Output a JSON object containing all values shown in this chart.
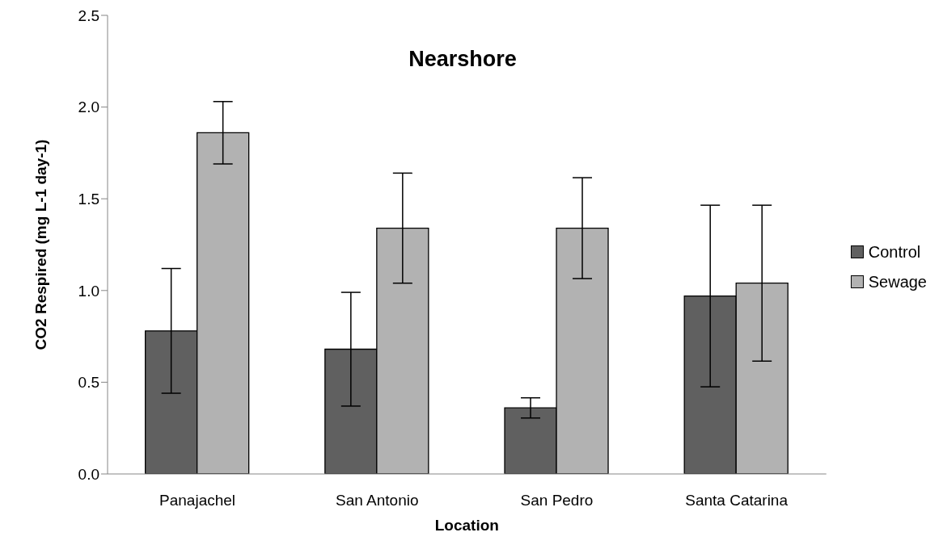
{
  "chart_data": {
    "type": "bar",
    "title": "Nearshore",
    "xlabel": "Location",
    "ylabel": "CO2 Respired (mg L-1 day-1)",
    "categories": [
      "Panajachel",
      "San Antonio",
      "San Pedro",
      "Santa Catarina"
    ],
    "series": [
      {
        "name": "Control",
        "color": "#606060",
        "values": [
          0.78,
          0.68,
          0.36,
          0.97
        ],
        "errors": [
          0.34,
          0.31,
          0.055,
          0.495
        ]
      },
      {
        "name": "Sewage",
        "color": "#b2b2b2",
        "values": [
          1.86,
          1.34,
          1.34,
          1.04
        ],
        "errors": [
          0.17,
          0.3,
          0.275,
          0.425
        ]
      }
    ],
    "ylim": [
      0,
      2.5
    ],
    "yticks": [
      {
        "value": 0,
        "label": "0.0"
      },
      {
        "value": 0.5,
        "label": "0.5"
      },
      {
        "value": 1,
        "label": "1.0"
      },
      {
        "value": 1.5,
        "label": "1.5"
      },
      {
        "value": 2,
        "label": "2.0"
      },
      {
        "value": 2.5,
        "label": "2.5"
      }
    ],
    "grid": false,
    "legend": "right"
  }
}
